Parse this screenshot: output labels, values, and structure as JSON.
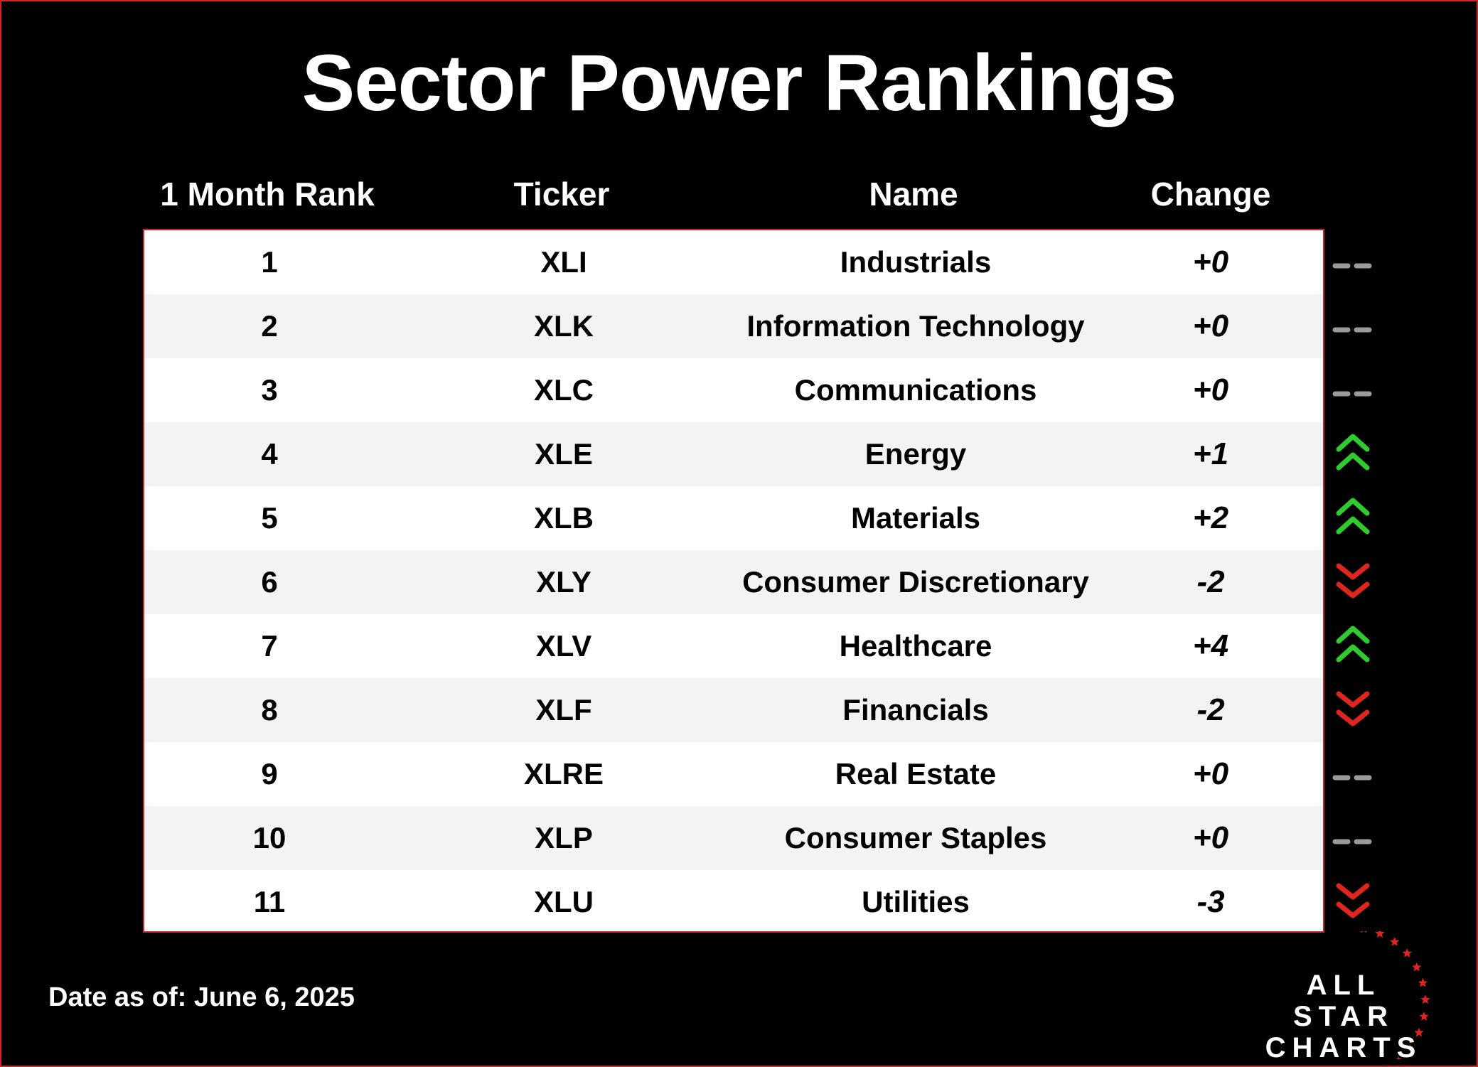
{
  "title": "Sector Power Rankings",
  "headers": {
    "rank": "1 Month Rank",
    "ticker": "Ticker",
    "name": "Name",
    "change": "Change"
  },
  "rows": [
    {
      "rank": "1",
      "ticker": "XLI",
      "name": "Industrials",
      "change": "+0",
      "trend": "flat"
    },
    {
      "rank": "2",
      "ticker": "XLK",
      "name": "Information Technology",
      "change": "+0",
      "trend": "flat"
    },
    {
      "rank": "3",
      "ticker": "XLC",
      "name": "Communications",
      "change": "+0",
      "trend": "flat"
    },
    {
      "rank": "4",
      "ticker": "XLE",
      "name": "Energy",
      "change": "+1",
      "trend": "up"
    },
    {
      "rank": "5",
      "ticker": "XLB",
      "name": "Materials",
      "change": "+2",
      "trend": "up"
    },
    {
      "rank": "6",
      "ticker": "XLY",
      "name": "Consumer Discretionary",
      "change": "-2",
      "trend": "down"
    },
    {
      "rank": "7",
      "ticker": "XLV",
      "name": "Healthcare",
      "change": "+4",
      "trend": "up"
    },
    {
      "rank": "8",
      "ticker": "XLF",
      "name": "Financials",
      "change": "-2",
      "trend": "down"
    },
    {
      "rank": "9",
      "ticker": "XLRE",
      "name": "Real Estate",
      "change": "+0",
      "trend": "flat"
    },
    {
      "rank": "10",
      "ticker": "XLP",
      "name": "Consumer Staples",
      "change": "+0",
      "trend": "flat"
    },
    {
      "rank": "11",
      "ticker": "XLU",
      "name": "Utilities",
      "change": "-3",
      "trend": "down"
    }
  ],
  "footer": {
    "date": "Date as of: June 6, 2025"
  },
  "logo": {
    "line1": "ALL STAR",
    "line2": "CHARTS"
  },
  "colors": {
    "up": "#2ecc2e",
    "down": "#e0251f",
    "flat": "#9a9a9a",
    "border": "#c8282a"
  },
  "icons": {
    "up": "double-chevron-up-icon",
    "down": "double-chevron-down-icon",
    "flat": "double-dash-icon"
  }
}
